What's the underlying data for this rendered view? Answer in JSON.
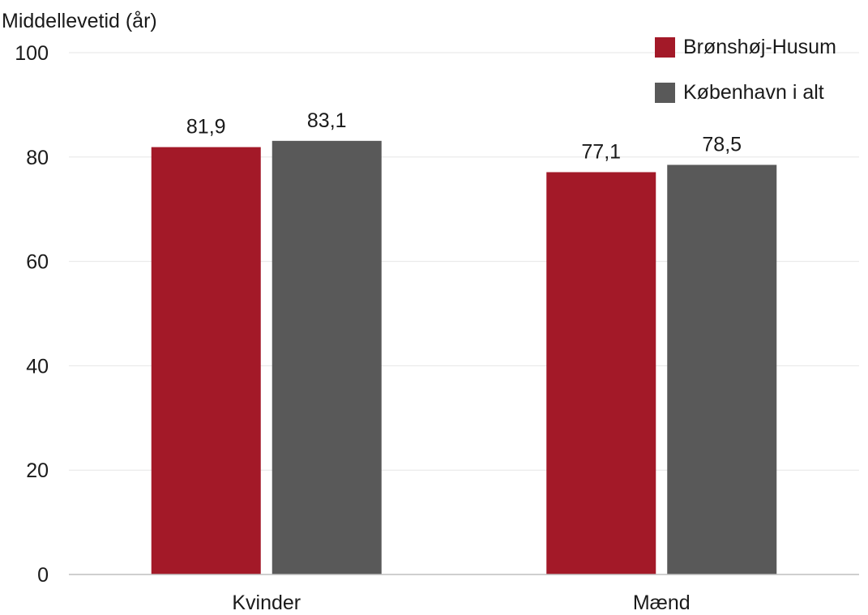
{
  "chart_data": {
    "type": "bar",
    "ylabel": "Middellevetid (år)",
    "categories": [
      "Kvinder",
      "Mænd"
    ],
    "ylim": [
      0,
      100
    ],
    "yticks": [
      0,
      20,
      40,
      60,
      80,
      100
    ],
    "grid": true,
    "legend_position": "top-right",
    "series": [
      {
        "name": "Brønshøj-Husum",
        "color": "#A31928",
        "values": [
          81.9,
          77.1
        ],
        "labels": [
          "81,9",
          "77,1"
        ]
      },
      {
        "name": "København i alt",
        "color": "#595959",
        "values": [
          83.1,
          78.5
        ],
        "labels": [
          "83,1",
          "78,5"
        ]
      }
    ]
  }
}
